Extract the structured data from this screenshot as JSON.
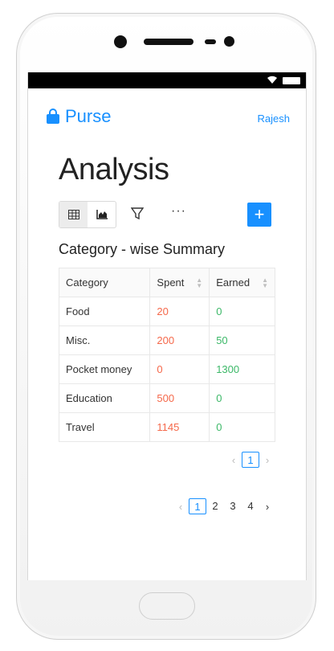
{
  "header": {
    "brand": "Purse",
    "user": "Rajesh"
  },
  "page": {
    "title": "Analysis",
    "subtitle": "Category - wise Summary"
  },
  "toolbar": {
    "more_label": "···",
    "add_label": "+"
  },
  "table": {
    "columns": [
      "Category",
      "Spent",
      "Earned"
    ],
    "rows": [
      {
        "category": "Food",
        "spent": "20",
        "earned": "0"
      },
      {
        "category": "Misc.",
        "spent": "200",
        "earned": "50"
      },
      {
        "category": "Pocket money",
        "spent": "0",
        "earned": "1300"
      },
      {
        "category": "Education",
        "spent": "500",
        "earned": "0"
      },
      {
        "category": "Travel",
        "spent": "1145",
        "earned": "0"
      }
    ]
  },
  "table_pagination": {
    "pages": [
      "1"
    ],
    "current": "1"
  },
  "page_pagination": {
    "pages": [
      "1",
      "2",
      "3",
      "4"
    ],
    "current": "1"
  },
  "colors": {
    "accent": "#1890ff",
    "spent": "#f5684a",
    "earned": "#3cb868"
  }
}
